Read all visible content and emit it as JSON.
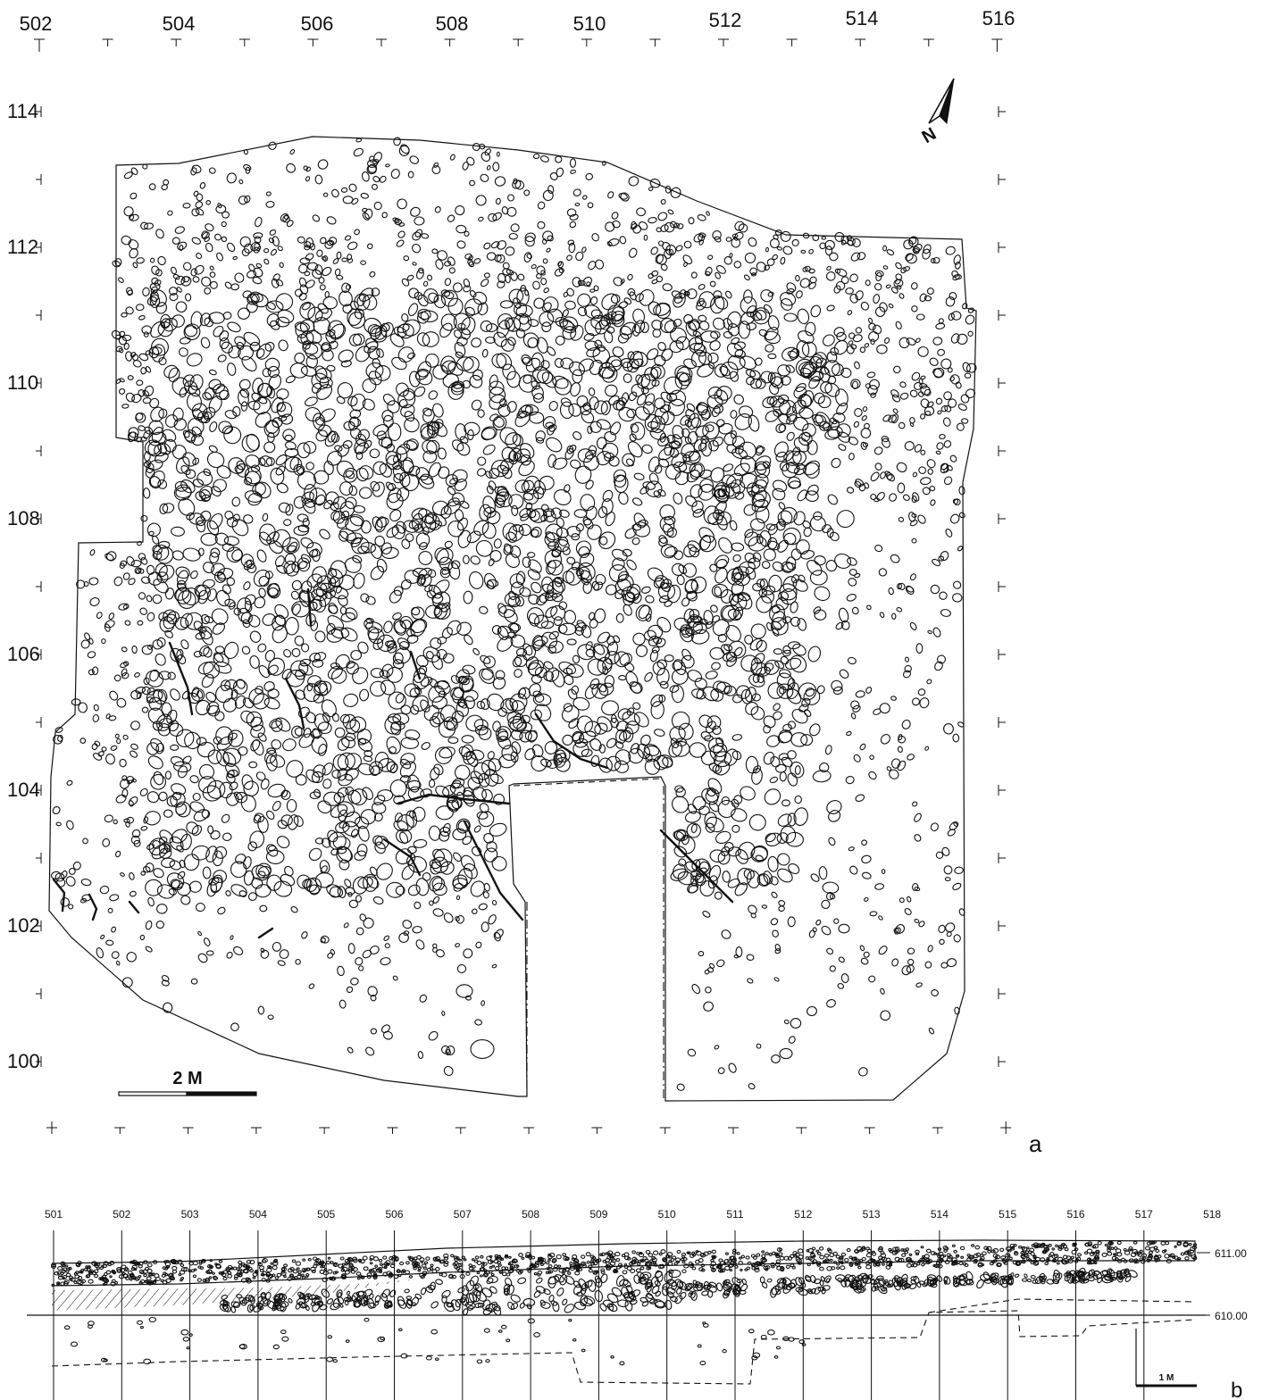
{
  "plan_a": {
    "panel_label": "a",
    "x_grid_labels": [
      "502",
      "504",
      "506",
      "508",
      "510",
      "512",
      "514",
      "516"
    ],
    "y_grid_labels": [
      "114",
      "112",
      "110",
      "108",
      "106",
      "104",
      "102",
      "100"
    ],
    "north_arrow_letter": "N",
    "scale_bar_label": "2 M"
  },
  "section_b": {
    "panel_label": "b",
    "x_grid_labels": [
      "501",
      "502",
      "503",
      "504",
      "505",
      "506",
      "507",
      "508",
      "509",
      "510",
      "511",
      "512",
      "513",
      "514",
      "515",
      "516",
      "517",
      "518"
    ],
    "elevation_labels": [
      "611.00",
      "610.00"
    ],
    "scale_bar_label": "1 M"
  }
}
